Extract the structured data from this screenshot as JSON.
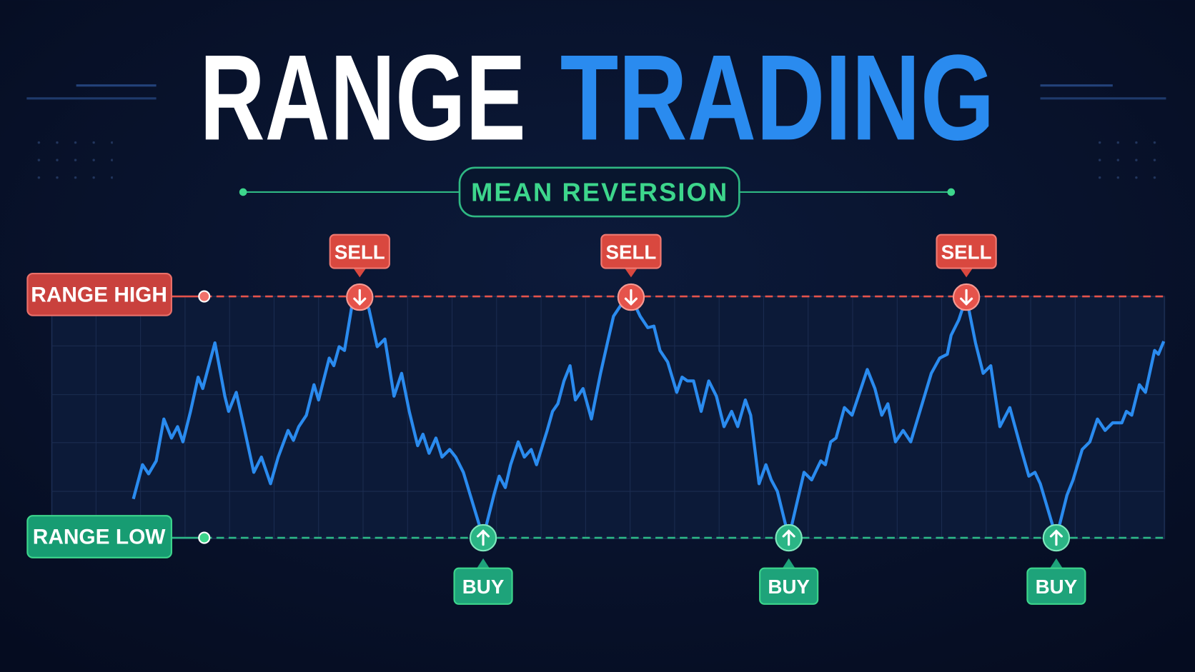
{
  "title": {
    "first": "RANGE",
    "second": "TRADING"
  },
  "subtitle": "MEAN REVERSION",
  "levels": {
    "high": "RANGE HIGH",
    "low": "RANGE LOW"
  },
  "signals": {
    "sell": [
      "SELL",
      "SELL",
      "SELL"
    ],
    "buy": [
      "BUY",
      "BUY",
      "BUY"
    ]
  }
}
